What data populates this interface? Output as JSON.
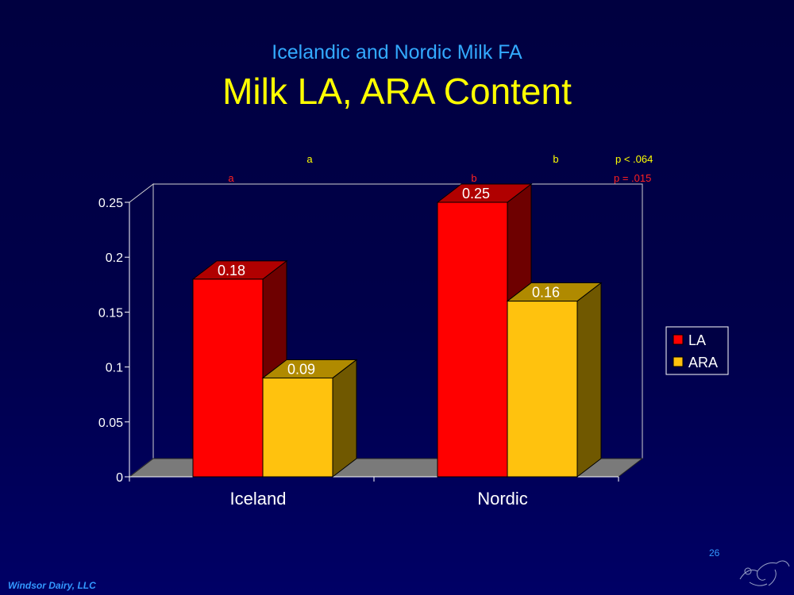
{
  "slide": {
    "subtitle": "Icelandic and Nordic Milk FA",
    "title": "Milk LA, ARA Content",
    "page_number": "26",
    "footer": "Windsor Dairy, LLC"
  },
  "chart_data": {
    "type": "bar",
    "categories": [
      "Iceland",
      "Nordic"
    ],
    "series": [
      {
        "name": "LA",
        "values": [
          0.18,
          0.25
        ],
        "color": "#ff0000",
        "side_color": "#6e0000",
        "top_color": "#b00000"
      },
      {
        "name": "ARA",
        "values": [
          0.09,
          0.16
        ],
        "color": "#ffc20e",
        "side_color": "#705800",
        "top_color": "#b08a00"
      }
    ],
    "data_labels": [
      "0.18",
      "0.25",
      "0.09",
      "0.16"
    ],
    "ylim": [
      0,
      0.25
    ],
    "yticks": [
      0,
      0.05,
      0.1,
      0.15,
      0.2,
      0.25
    ],
    "ytick_labels": [
      "0",
      "0.05",
      "0.1",
      "0.15",
      "0.2",
      "0.25"
    ],
    "legend_position": "right",
    "annotations": {
      "ara_row": {
        "iceland": "a",
        "nordic": "b",
        "p": "p < .064",
        "color": "#ffff00"
      },
      "la_row": {
        "iceland": "a",
        "nordic": "b",
        "p": "p = .015",
        "color": "#ff2020"
      }
    },
    "grid": false,
    "style": "3d"
  }
}
